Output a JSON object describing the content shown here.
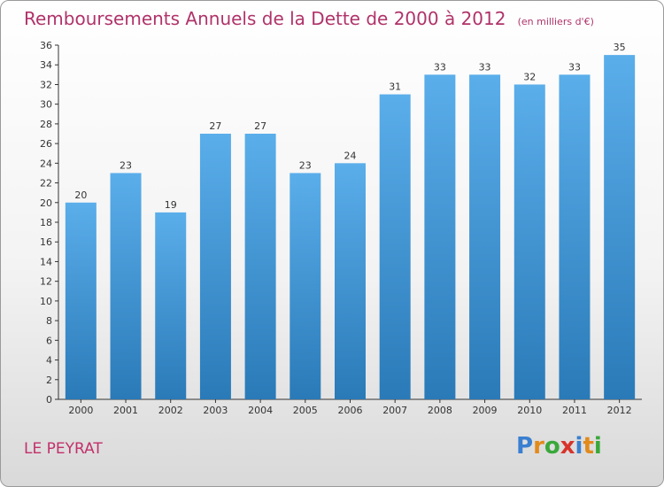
{
  "header": {
    "title": "Remboursements Annuels de la Dette de 2000 à 2012",
    "unit": "(en milliers d'€)"
  },
  "commune": "LE PEYRAT",
  "logo": {
    "text": "Proxiti",
    "letters": [
      {
        "ch": "P",
        "color": "#3a7fd0"
      },
      {
        "ch": "r",
        "color": "#e28a1c"
      },
      {
        "ch": "o",
        "color": "#3aa83a"
      },
      {
        "ch": "x",
        "color": "#d8342c"
      },
      {
        "ch": "i",
        "color": "#3a7fd0"
      },
      {
        "ch": "t",
        "color": "#e28a1c"
      },
      {
        "ch": "i",
        "color": "#3aa83a"
      }
    ]
  },
  "chart_data": {
    "type": "bar",
    "categories": [
      "2000",
      "2001",
      "2002",
      "2003",
      "2004",
      "2005",
      "2006",
      "2007",
      "2008",
      "2009",
      "2010",
      "2011",
      "2012"
    ],
    "values": [
      20,
      23,
      19,
      27,
      27,
      23,
      24,
      31,
      33,
      33,
      32,
      33,
      35
    ],
    "ylim": [
      0,
      36
    ],
    "yticks": [
      0,
      2,
      4,
      6,
      8,
      10,
      12,
      14,
      16,
      18,
      20,
      22,
      24,
      26,
      28,
      30,
      32,
      34,
      36
    ],
    "grid": false,
    "bar_color_top": "#5aaeea",
    "bar_color_bottom": "#2a7ab8"
  }
}
